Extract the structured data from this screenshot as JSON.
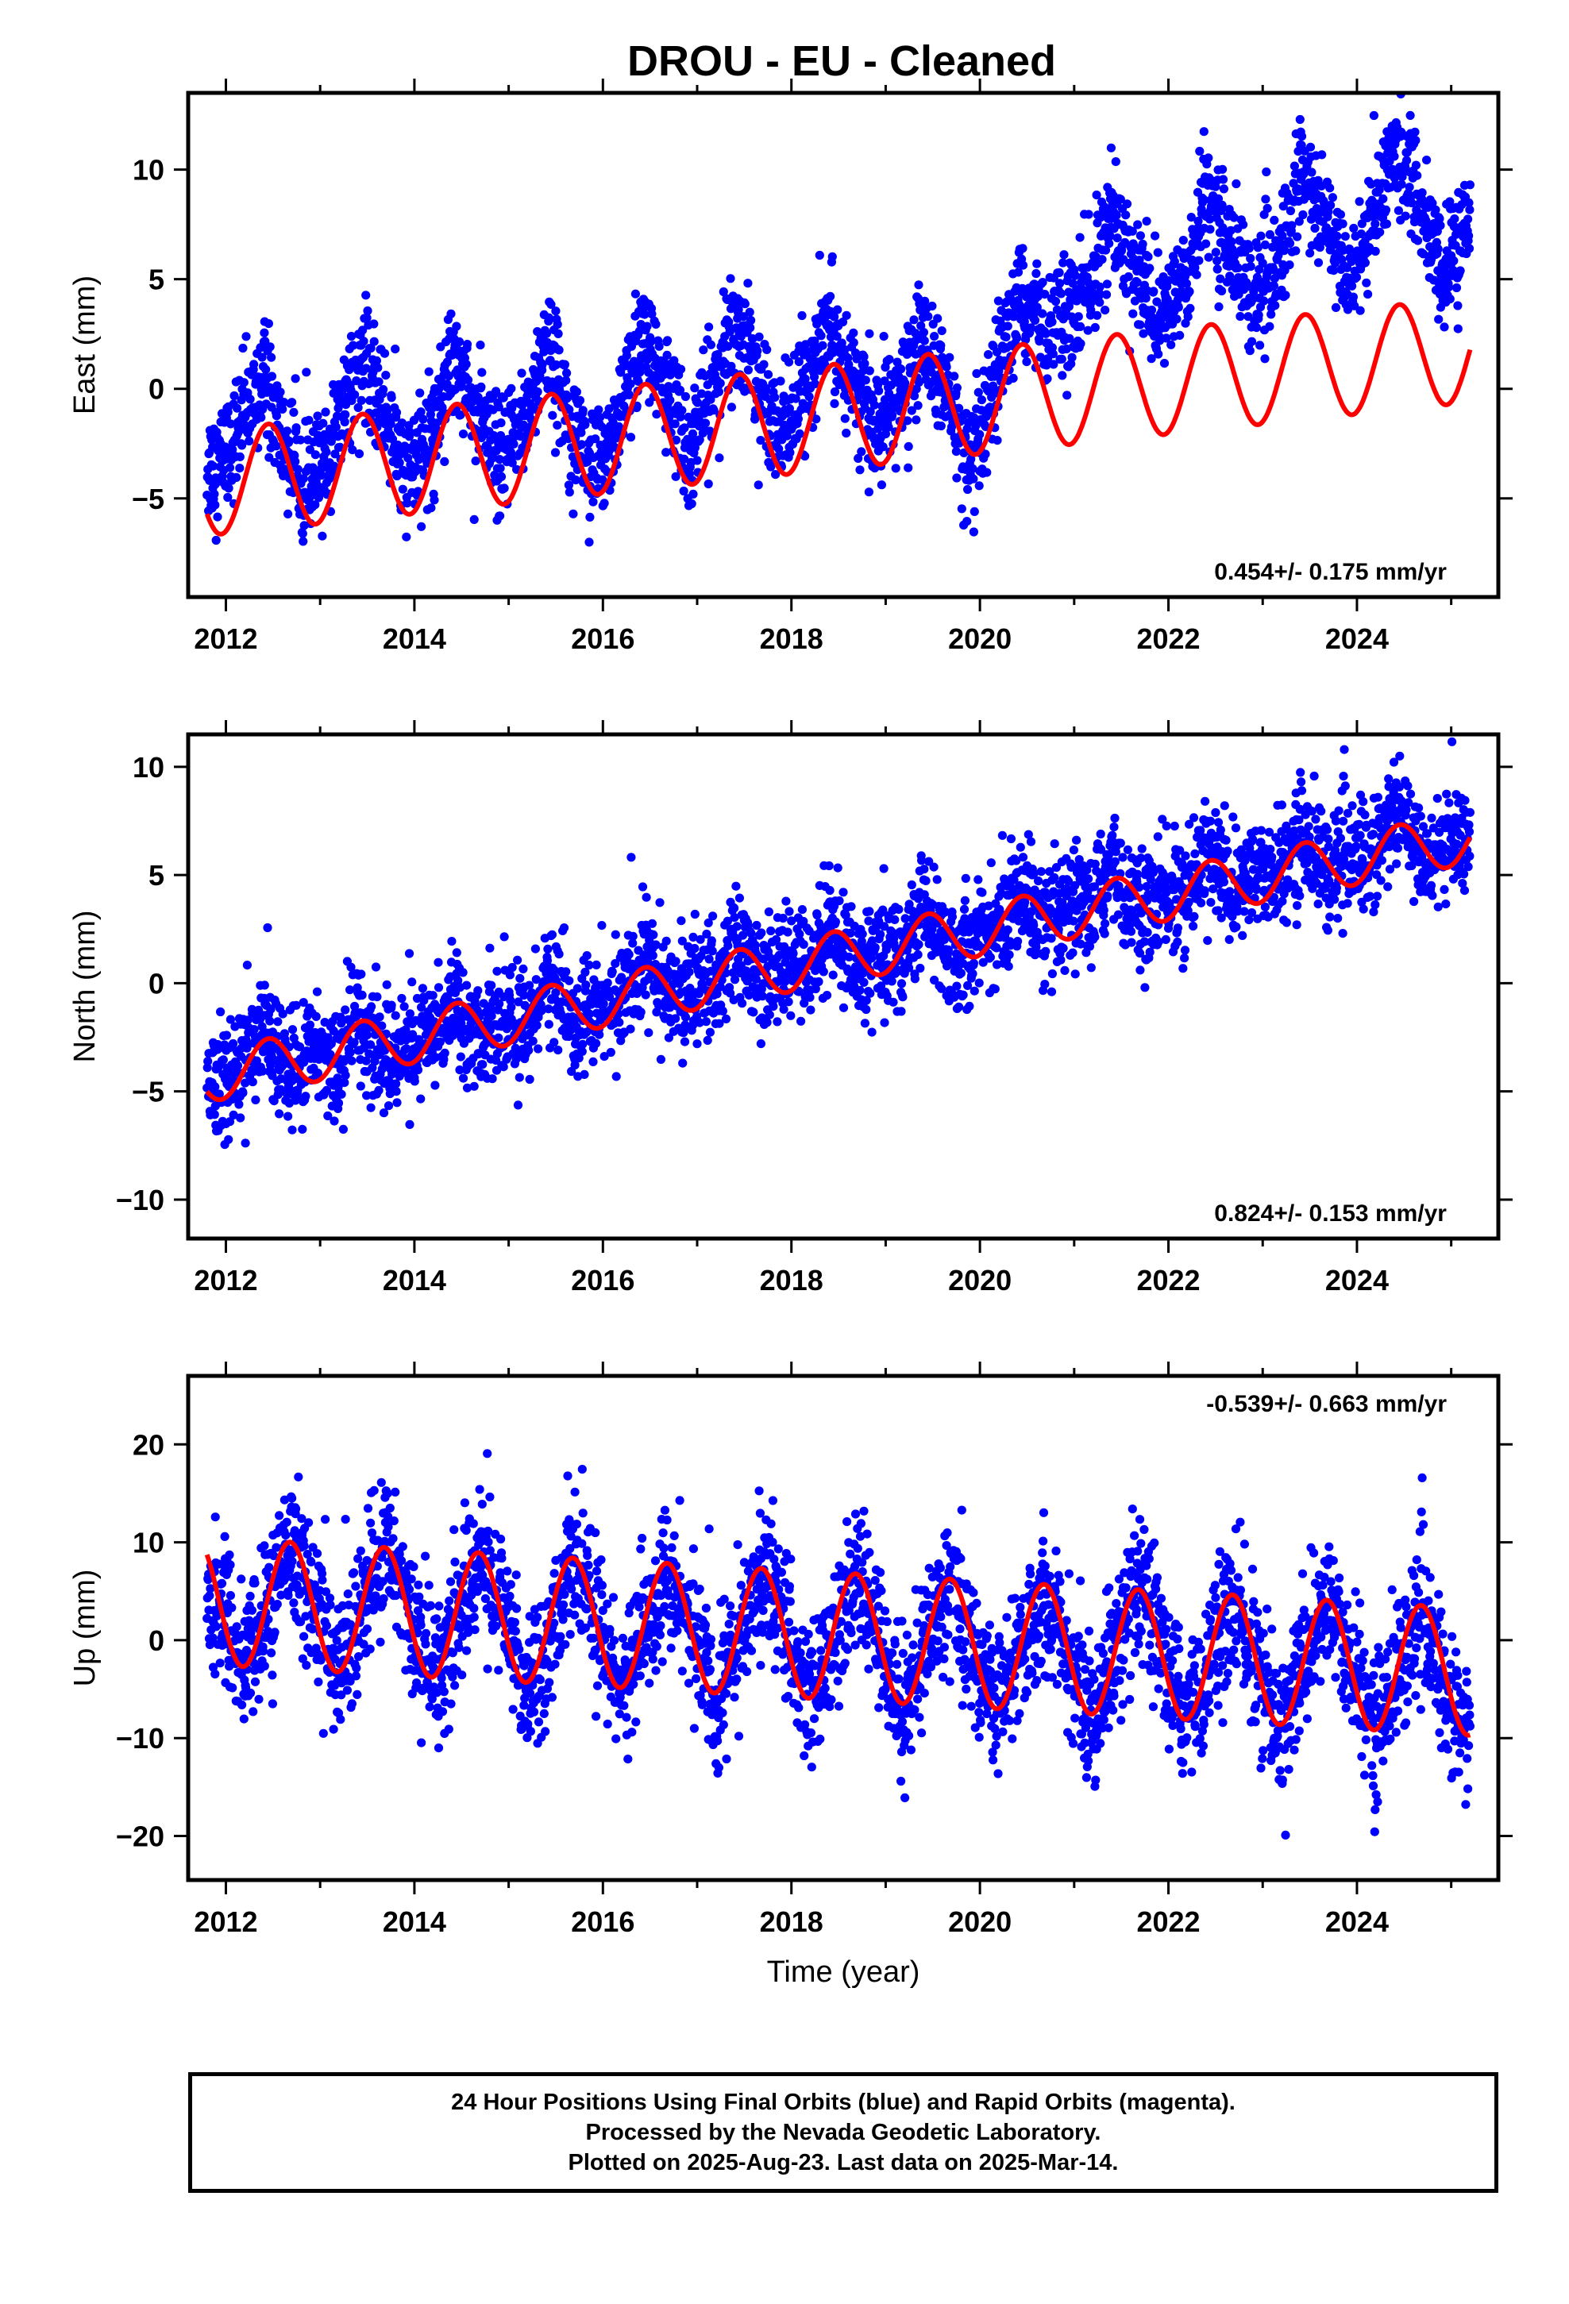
{
  "title": "DROU  - EU - Cleaned",
  "chart_data": [
    {
      "type": "scatter",
      "component": "East",
      "ylabel": "East (mm)",
      "xlabel": "",
      "xlim": [
        2011.6,
        2025.5
      ],
      "ylim": [
        -9.5,
        13.5
      ],
      "xticks": [
        "2012",
        "2014",
        "2016",
        "2018",
        "2020",
        "2022",
        "2024"
      ],
      "yticks": [
        "10",
        "5",
        "0",
        "−5"
      ],
      "ytick_values": [
        10,
        5,
        0,
        -5
      ],
      "rate_label": "0.454+/- 0.175 mm/yr",
      "rate_position": "bottom-right",
      "series": [
        {
          "marker": "dot",
          "color": "#0000ff",
          "x_start": 2011.8,
          "x_end": 2025.2,
          "points": [
            [
              2011.9,
              -3.5
            ],
            [
              2012.1,
              -2.2
            ],
            [
              2012.4,
              0.8
            ],
            [
              2012.6,
              -2.5
            ],
            [
              2012.9,
              -4.5
            ],
            [
              2013.1,
              -3
            ],
            [
              2013.4,
              1.5
            ],
            [
              2013.7,
              -1
            ],
            [
              2013.9,
              -4
            ],
            [
              2014.2,
              -2
            ],
            [
              2014.4,
              2
            ],
            [
              2014.7,
              -1.5
            ],
            [
              2014.9,
              -3.5
            ],
            [
              2015.2,
              -1
            ],
            [
              2015.4,
              2
            ],
            [
              2015.7,
              -1.5
            ],
            [
              2015.9,
              -4
            ],
            [
              2016.2,
              -1
            ],
            [
              2016.4,
              2.5
            ],
            [
              2016.7,
              0
            ],
            [
              2016.9,
              -3
            ],
            [
              2017.2,
              0.5
            ],
            [
              2017.4,
              3
            ],
            [
              2017.7,
              0
            ],
            [
              2017.9,
              -2
            ],
            [
              2018.2,
              0.5
            ],
            [
              2018.4,
              3
            ],
            [
              2018.7,
              0
            ],
            [
              2018.9,
              -2
            ],
            [
              2019.2,
              0
            ],
            [
              2019.4,
              2.5
            ],
            [
              2019.7,
              -1
            ],
            [
              2019.9,
              -4
            ],
            [
              2020.1,
              -1
            ],
            [
              2020.4,
              4
            ],
            [
              2020.7,
              3
            ],
            [
              2020.9,
              3
            ],
            [
              2021.2,
              5
            ],
            [
              2021.4,
              8
            ],
            [
              2021.7,
              5
            ],
            [
              2021.9,
              3
            ],
            [
              2022.2,
              5
            ],
            [
              2022.4,
              9
            ],
            [
              2022.7,
              6
            ],
            [
              2022.9,
              4
            ],
            [
              2023.2,
              6
            ],
            [
              2023.4,
              10
            ],
            [
              2023.7,
              7
            ],
            [
              2023.9,
              5
            ],
            [
              2024.2,
              8
            ],
            [
              2024.4,
              11
            ],
            [
              2024.7,
              8
            ],
            [
              2024.9,
              5
            ],
            [
              2025.1,
              7
            ]
          ]
        }
      ],
      "fit": {
        "color": "#ff0000",
        "model": "seasonal",
        "offset_2011_8": -4.3,
        "trend": 0.454,
        "annual_amplitude": 2.4,
        "annual_peak": 0.45
      }
    },
    {
      "type": "scatter",
      "component": "North",
      "ylabel": "North (mm)",
      "xlabel": "",
      "xlim": [
        2011.6,
        2025.5
      ],
      "ylim": [
        -11.8,
        11.5
      ],
      "xticks": [
        "2012",
        "2014",
        "2016",
        "2018",
        "2020",
        "2022",
        "2024"
      ],
      "yticks": [
        "10",
        "5",
        "0",
        "−5",
        "−10"
      ],
      "ytick_values": [
        10,
        5,
        0,
        -5,
        -10
      ],
      "rate_label": "0.824+/- 0.153 mm/yr",
      "rate_position": "bottom-right",
      "series": [
        {
          "marker": "dot",
          "color": "#0000ff",
          "x_start": 2011.8,
          "x_end": 2025.2,
          "points": [
            [
              2011.9,
              -4.5
            ],
            [
              2012.2,
              -3.5
            ],
            [
              2012.4,
              -2
            ],
            [
              2012.7,
              -4.5
            ],
            [
              2012.9,
              -3
            ],
            [
              2013.2,
              -3.5
            ],
            [
              2013.4,
              -1.5
            ],
            [
              2013.7,
              -3.5
            ],
            [
              2013.9,
              -3
            ],
            [
              2014.2,
              -2.5
            ],
            [
              2014.4,
              -0.5
            ],
            [
              2014.7,
              -2.5
            ],
            [
              2014.9,
              -2
            ],
            [
              2015.2,
              -2
            ],
            [
              2015.4,
              0.5
            ],
            [
              2015.7,
              -2
            ],
            [
              2015.9,
              -1
            ],
            [
              2016.2,
              -1
            ],
            [
              2016.4,
              1.5
            ],
            [
              2016.7,
              -0.5
            ],
            [
              2016.9,
              -0.5
            ],
            [
              2017.2,
              0
            ],
            [
              2017.4,
              2
            ],
            [
              2017.7,
              0
            ],
            [
              2017.9,
              0.5
            ],
            [
              2018.2,
              1
            ],
            [
              2018.4,
              3
            ],
            [
              2018.7,
              0.5
            ],
            [
              2018.9,
              1.5
            ],
            [
              2019.2,
              1.5
            ],
            [
              2019.4,
              3.5
            ],
            [
              2019.7,
              1
            ],
            [
              2019.9,
              2
            ],
            [
              2020.2,
              2.5
            ],
            [
              2020.4,
              4.5
            ],
            [
              2020.7,
              2.5
            ],
            [
              2020.9,
              3
            ],
            [
              2021.2,
              3.5
            ],
            [
              2021.4,
              5.5
            ],
            [
              2021.7,
              3
            ],
            [
              2021.9,
              4
            ],
            [
              2022.2,
              4
            ],
            [
              2022.4,
              6.5
            ],
            [
              2022.7,
              4
            ],
            [
              2022.9,
              5
            ],
            [
              2023.2,
              5
            ],
            [
              2023.4,
              7
            ],
            [
              2023.7,
              5
            ],
            [
              2023.9,
              6
            ],
            [
              2024.2,
              6
            ],
            [
              2024.4,
              8
            ],
            [
              2024.7,
              5.5
            ],
            [
              2024.9,
              6.5
            ],
            [
              2025.1,
              6.5
            ]
          ]
        }
      ],
      "fit": {
        "color": "#ff0000",
        "model": "seasonal",
        "offset_2011_8": -4.3,
        "trend": 0.824,
        "annual_amplitude": 1.2,
        "annual_peak": 0.45
      }
    },
    {
      "type": "scatter",
      "component": "Up",
      "ylabel": "Up (mm)",
      "xlabel": "Time (year)",
      "xlim": [
        2011.6,
        2025.5
      ],
      "ylim": [
        -24.5,
        27
      ],
      "xticks": [
        "2012",
        "2014",
        "2016",
        "2018",
        "2020",
        "2022",
        "2024"
      ],
      "yticks": [
        "20",
        "10",
        "0",
        "−10",
        "−20"
      ],
      "ytick_values": [
        20,
        10,
        0,
        -10,
        -20
      ],
      "rate_label": "-0.539+/- 0.663 mm/yr",
      "rate_position": "top-right",
      "series": [
        {
          "marker": "dot",
          "color": "#0000ff",
          "x_start": 2011.8,
          "x_end": 2025.2,
          "points": [
            [
              2011.9,
              4
            ],
            [
              2012.2,
              -3
            ],
            [
              2012.4,
              2
            ],
            [
              2012.7,
              10
            ],
            [
              2012.9,
              5
            ],
            [
              2013.2,
              -3
            ],
            [
              2013.4,
              2
            ],
            [
              2013.7,
              10
            ],
            [
              2013.9,
              5
            ],
            [
              2014.2,
              -4
            ],
            [
              2014.4,
              1
            ],
            [
              2014.7,
              9
            ],
            [
              2014.9,
              4
            ],
            [
              2015.2,
              -5
            ],
            [
              2015.4,
              0
            ],
            [
              2015.7,
              8
            ],
            [
              2015.9,
              3
            ],
            [
              2016.2,
              -5
            ],
            [
              2016.4,
              0
            ],
            [
              2016.7,
              7
            ],
            [
              2016.9,
              2
            ],
            [
              2017.2,
              -6
            ],
            [
              2017.4,
              -1
            ],
            [
              2017.7,
              7
            ],
            [
              2017.9,
              2
            ],
            [
              2018.2,
              -6
            ],
            [
              2018.4,
              -1
            ],
            [
              2018.7,
              6
            ],
            [
              2018.9,
              1
            ],
            [
              2019.2,
              -7
            ],
            [
              2019.4,
              -1
            ],
            [
              2019.7,
              6
            ],
            [
              2019.9,
              0
            ],
            [
              2020.2,
              -7
            ],
            [
              2020.4,
              -2
            ],
            [
              2020.7,
              5
            ],
            [
              2020.9,
              -1
            ],
            [
              2021.2,
              -8
            ],
            [
              2021.4,
              -2
            ],
            [
              2021.7,
              5
            ],
            [
              2021.9,
              -1
            ],
            [
              2022.2,
              -8
            ],
            [
              2022.4,
              -3
            ],
            [
              2022.7,
              4
            ],
            [
              2022.9,
              -2
            ],
            [
              2023.2,
              -9
            ],
            [
              2023.4,
              -3
            ],
            [
              2023.7,
              4
            ],
            [
              2023.9,
              -2
            ],
            [
              2024.2,
              -9
            ],
            [
              2024.4,
              -4
            ],
            [
              2024.7,
              3
            ],
            [
              2024.9,
              -4
            ],
            [
              2025.1,
              -9
            ]
          ]
        }
      ],
      "fit": {
        "color": "#ff0000",
        "model": "seasonal",
        "offset_2011_8": 4.0,
        "trend": -0.539,
        "annual_amplitude": 6.5,
        "annual_peak": 0.68
      }
    }
  ],
  "footer": {
    "line1": "24 Hour Positions Using Final Orbits (blue) and Rapid Orbits (magenta).",
    "line2": "Processed by the Nevada Geodetic Laboratory.",
    "line3": "Plotted on 2025-Aug-23. Last data on 2025-Mar-14."
  }
}
